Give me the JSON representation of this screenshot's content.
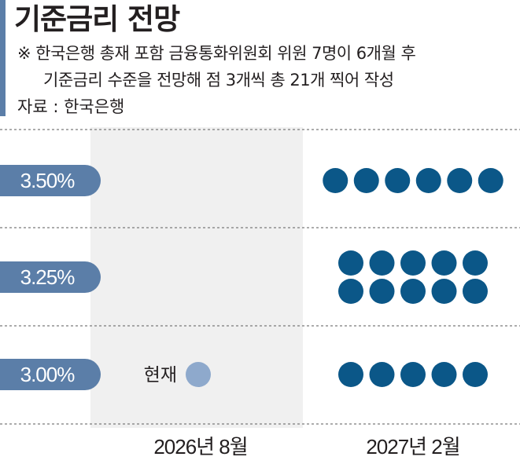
{
  "title": "기준금리 전망",
  "note_line1": "※ 한국은행 총재 포함 금융통화위원회 위원 7명이 6개월 후",
  "note_line2": "기준금리 수준을 전망해 점 3개씩 총 21개 찍어 작성",
  "source": "자료 : 한국은행",
  "current_label": "현재",
  "colors": {
    "dot": "#0b5788",
    "current_dot": "#8ea9cc",
    "pill": "#5b7ea8",
    "shade": "#f0f0f0",
    "grid": "#7a7a7a"
  },
  "chart_data": {
    "type": "scatter",
    "title": "기준금리 전망",
    "y_categories": [
      "3.50%",
      "3.25%",
      "3.00%"
    ],
    "x_categories": [
      "2026년 8월",
      "2027년 2월"
    ],
    "series": [
      {
        "name": "현재",
        "x": "2026년 8월",
        "points": [
          {
            "rate": "3.00%",
            "count": 1
          }
        ]
      },
      {
        "x": "2027년 2월",
        "points": [
          {
            "rate": "3.50%",
            "count": 6
          },
          {
            "rate": "3.25%",
            "count": 10
          },
          {
            "rate": "3.00%",
            "count": 5
          }
        ]
      }
    ]
  }
}
